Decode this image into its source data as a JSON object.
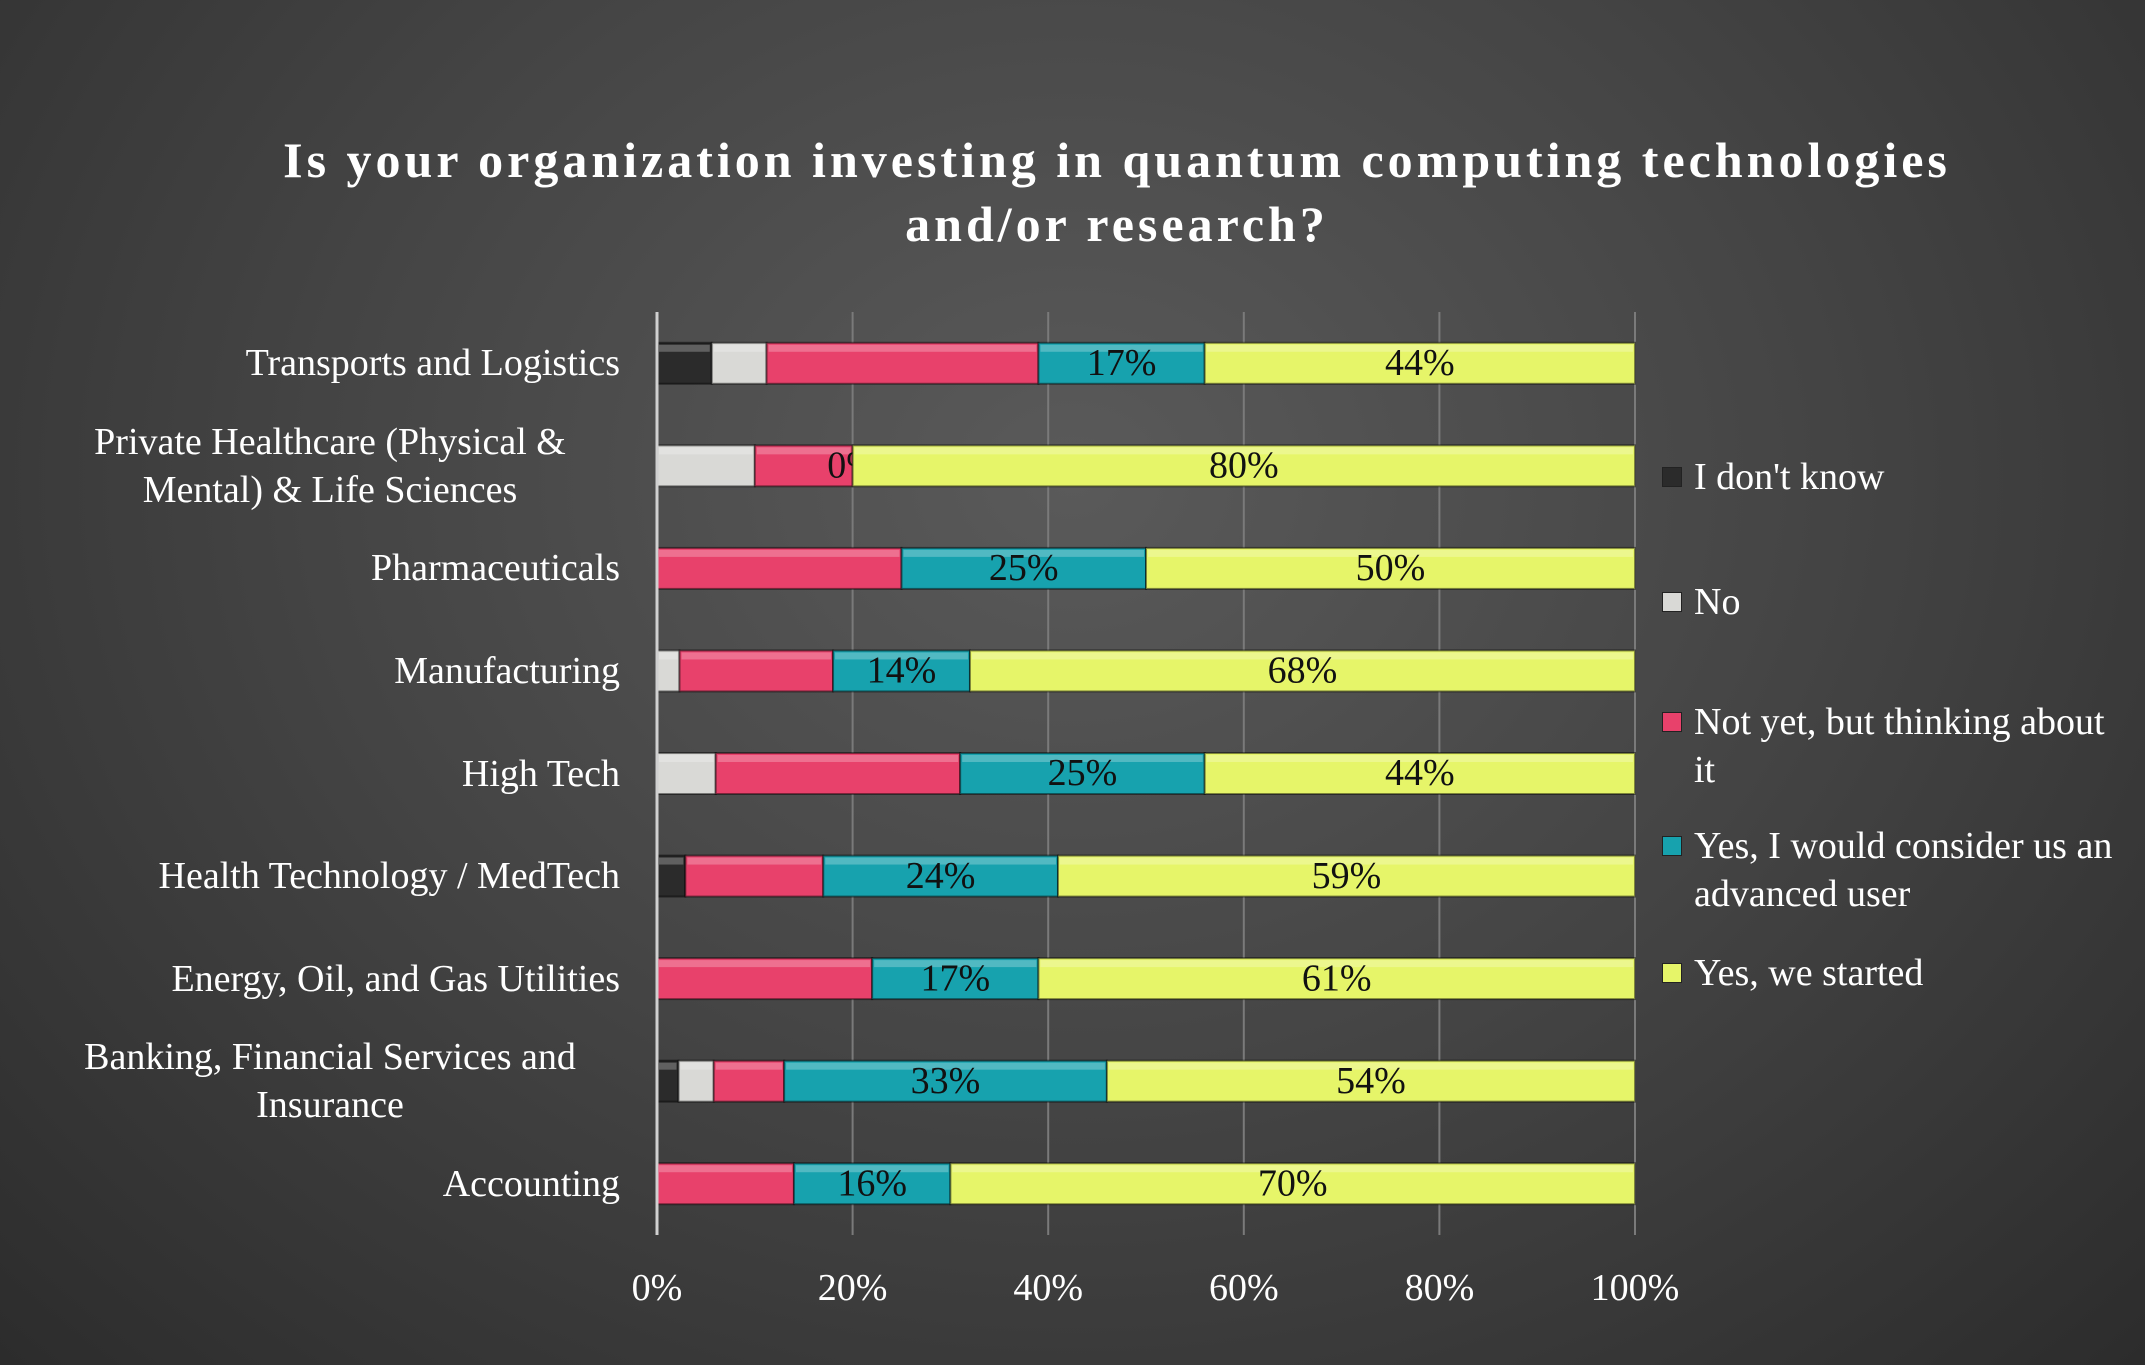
{
  "chart_data": {
    "type": "stacked-bar-horizontal",
    "title": "Is your organization investing in quantum computing technologies and/or research?",
    "categories": [
      "Transports and Logistics",
      "Private Healthcare (Physical & Mental) & Life Sciences",
      "Pharmaceuticals",
      "Manufacturing",
      "High Tech",
      "Health Technology / MedTech",
      "Energy, Oil, and Gas Utilities",
      "Banking, Financial Services and Insurance",
      "Accounting"
    ],
    "series": [
      {
        "name": "I don't know",
        "color": "#2b2b2b",
        "values": [
          5.6,
          0,
          0,
          0,
          0,
          2.9,
          0,
          2.2,
          0
        ]
      },
      {
        "name": "No",
        "color": "#d9d9d6",
        "values": [
          5.6,
          10,
          0,
          2.3,
          6,
          0,
          0,
          3.6,
          0
        ]
      },
      {
        "name": "Not yet, but thinking about it",
        "color": "#e8416b",
        "values": [
          27.8,
          10,
          25,
          15.7,
          25,
          14.1,
          22,
          7.2,
          14
        ]
      },
      {
        "name": "Yes, I would consider us an advanced user",
        "color": "#17a2ae",
        "values": [
          17,
          0,
          25,
          14,
          25,
          24,
          17,
          33,
          16
        ],
        "value_labels": [
          "17%",
          "0%",
          "25%",
          "14%",
          "25%",
          "24%",
          "17%",
          "33%",
          "16%"
        ]
      },
      {
        "name": "Yes, we started",
        "color": "#e6f569",
        "values": [
          44,
          80,
          50,
          68,
          44,
          59,
          61,
          54,
          70
        ],
        "value_labels": [
          "44%",
          "80%",
          "50%",
          "68%",
          "44%",
          "59%",
          "61%",
          "54%",
          "70%"
        ]
      }
    ],
    "xlim": [
      0,
      100
    ],
    "xticks": [
      {
        "value": 0,
        "label": "0%"
      },
      {
        "value": 20,
        "label": "20%"
      },
      {
        "value": 40,
        "label": "40%"
      },
      {
        "value": 60,
        "label": "60%"
      },
      {
        "value": 80,
        "label": "80%"
      },
      {
        "value": 100,
        "label": "100%"
      }
    ],
    "grid": true,
    "legend": "right"
  }
}
